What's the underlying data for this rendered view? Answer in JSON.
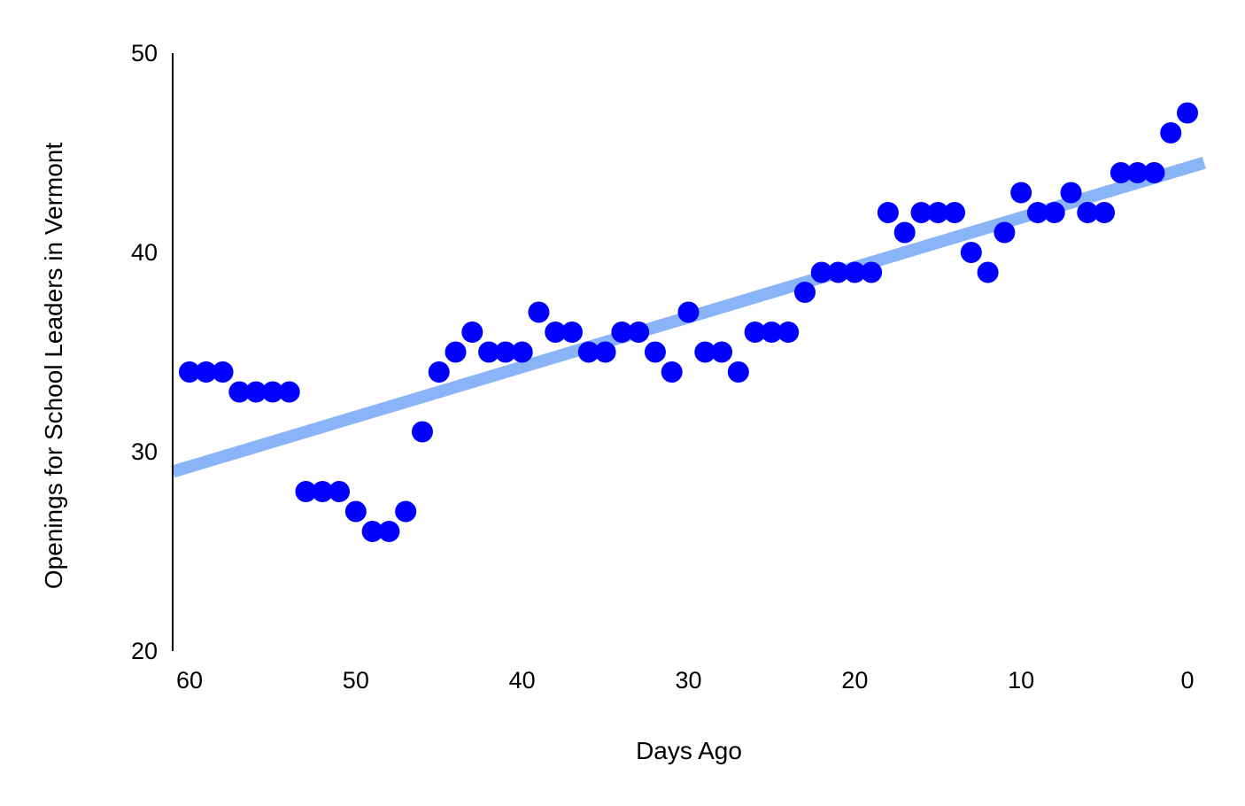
{
  "colors": {
    "point": "#0000ff",
    "trendline": "#8ab4f8",
    "axis": "#000000",
    "background": "#ffffff"
  },
  "chart_data": {
    "type": "scatter",
    "title": "",
    "xlabel": "Days Ago",
    "ylabel": "Openings for School Leaders in Vermont",
    "xlim": [
      60,
      0
    ],
    "x_reversed": true,
    "ylim": [
      20,
      50
    ],
    "x_ticks": [
      60,
      50,
      40,
      30,
      20,
      10,
      0
    ],
    "y_ticks": [
      20,
      30,
      40,
      50
    ],
    "grid": false,
    "legend": "none",
    "series": [
      {
        "points": [
          {
            "x": 60,
            "y": 34
          },
          {
            "x": 59,
            "y": 34
          },
          {
            "x": 58,
            "y": 34
          },
          {
            "x": 57,
            "y": 33
          },
          {
            "x": 56,
            "y": 33
          },
          {
            "x": 55,
            "y": 33
          },
          {
            "x": 54,
            "y": 33
          },
          {
            "x": 53,
            "y": 28
          },
          {
            "x": 52,
            "y": 28
          },
          {
            "x": 51,
            "y": 28
          },
          {
            "x": 50,
            "y": 27
          },
          {
            "x": 49,
            "y": 26
          },
          {
            "x": 48,
            "y": 26
          },
          {
            "x": 47,
            "y": 27
          },
          {
            "x": 46,
            "y": 31
          },
          {
            "x": 45,
            "y": 34
          },
          {
            "x": 44,
            "y": 35
          },
          {
            "x": 43,
            "y": 36
          },
          {
            "x": 42,
            "y": 35
          },
          {
            "x": 41,
            "y": 35
          },
          {
            "x": 40,
            "y": 35
          },
          {
            "x": 39,
            "y": 37
          },
          {
            "x": 38,
            "y": 36
          },
          {
            "x": 37,
            "y": 36
          },
          {
            "x": 36,
            "y": 35
          },
          {
            "x": 35,
            "y": 35
          },
          {
            "x": 34,
            "y": 36
          },
          {
            "x": 33,
            "y": 36
          },
          {
            "x": 32,
            "y": 35
          },
          {
            "x": 31,
            "y": 34
          },
          {
            "x": 30,
            "y": 37
          },
          {
            "x": 29,
            "y": 35
          },
          {
            "x": 28,
            "y": 35
          },
          {
            "x": 27,
            "y": 34
          },
          {
            "x": 26,
            "y": 36
          },
          {
            "x": 25,
            "y": 36
          },
          {
            "x": 24,
            "y": 36
          },
          {
            "x": 23,
            "y": 38
          },
          {
            "x": 22,
            "y": 39
          },
          {
            "x": 21,
            "y": 39
          },
          {
            "x": 20,
            "y": 39
          },
          {
            "x": 19,
            "y": 39
          },
          {
            "x": 18,
            "y": 42
          },
          {
            "x": 17,
            "y": 41
          },
          {
            "x": 16,
            "y": 42
          },
          {
            "x": 15,
            "y": 42
          },
          {
            "x": 14,
            "y": 42
          },
          {
            "x": 13,
            "y": 40
          },
          {
            "x": 12,
            "y": 39
          },
          {
            "x": 11,
            "y": 41
          },
          {
            "x": 10,
            "y": 43
          },
          {
            "x": 9,
            "y": 42
          },
          {
            "x": 8,
            "y": 42
          },
          {
            "x": 7,
            "y": 43
          },
          {
            "x": 6,
            "y": 42
          },
          {
            "x": 5,
            "y": 42
          },
          {
            "x": 4,
            "y": 44
          },
          {
            "x": 3,
            "y": 44
          },
          {
            "x": 2,
            "y": 44
          },
          {
            "x": 1,
            "y": 46
          },
          {
            "x": 0,
            "y": 47
          }
        ]
      }
    ],
    "trendline": {
      "type": "linear",
      "start": {
        "x": 61,
        "y": 29
      },
      "end": {
        "x": -1,
        "y": 44.5
      }
    }
  }
}
